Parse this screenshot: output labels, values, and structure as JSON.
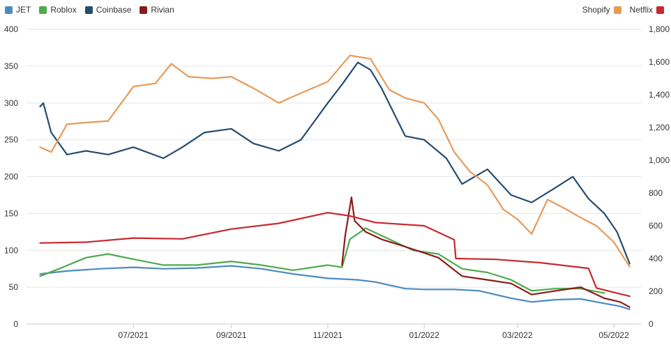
{
  "chart_data": {
    "type": "line",
    "x_axis": {
      "type": "date",
      "range": [
        "2021-05-01",
        "2022-05-12"
      ],
      "tick_labels": [
        "07/2021",
        "09/2021",
        "11/2021",
        "01/2022",
        "03/2022",
        "05/2022"
      ],
      "tick_dates": [
        "2021-07-01",
        "2021-09-01",
        "2021-11-01",
        "2022-01-01",
        "2022-03-01",
        "2022-05-01"
      ]
    },
    "y_left": {
      "ylim": [
        0,
        400
      ],
      "ticks": [
        "0",
        "50",
        "100",
        "150",
        "200",
        "250",
        "300",
        "350",
        "400"
      ]
    },
    "y_right": {
      "ylim": [
        0,
        1800
      ],
      "ticks": [
        "0",
        "200",
        "400",
        "600",
        "800",
        "1,000",
        "1,200",
        "1,400",
        "1,600",
        "1,800"
      ]
    },
    "grid": true,
    "legend_left": [
      "JET",
      "Roblox",
      "Coinbase",
      "Rivian"
    ],
    "legend_right": [
      "Shopify",
      "Netflix"
    ],
    "series": [
      {
        "name": "JET",
        "axis": "left",
        "color": "#4c8bc0",
        "points": [
          [
            "2021-05-03",
            68
          ],
          [
            "2021-05-20",
            72
          ],
          [
            "2021-06-10",
            75
          ],
          [
            "2021-07-01",
            77
          ],
          [
            "2021-07-20",
            75
          ],
          [
            "2021-08-10",
            76
          ],
          [
            "2021-09-01",
            79
          ],
          [
            "2021-09-20",
            75
          ],
          [
            "2021-10-10",
            68
          ],
          [
            "2021-11-01",
            62
          ],
          [
            "2021-11-20",
            60
          ],
          [
            "2021-12-01",
            57
          ],
          [
            "2021-12-20",
            48
          ],
          [
            "2022-01-01",
            47
          ],
          [
            "2022-01-20",
            47
          ],
          [
            "2022-02-05",
            45
          ],
          [
            "2022-02-25",
            35
          ],
          [
            "2022-03-10",
            30
          ],
          [
            "2022-03-25",
            33
          ],
          [
            "2022-04-10",
            34
          ],
          [
            "2022-04-25",
            28
          ],
          [
            "2022-05-05",
            24
          ],
          [
            "2022-05-11",
            20
          ]
        ]
      },
      {
        "name": "Roblox",
        "axis": "left",
        "color": "#4dab4a",
        "points": [
          [
            "2021-05-03",
            65
          ],
          [
            "2021-05-15",
            75
          ],
          [
            "2021-06-01",
            90
          ],
          [
            "2021-06-15",
            95
          ],
          [
            "2021-07-01",
            88
          ],
          [
            "2021-07-20",
            80
          ],
          [
            "2021-08-10",
            80
          ],
          [
            "2021-09-01",
            85
          ],
          [
            "2021-09-20",
            80
          ],
          [
            "2021-10-10",
            73
          ],
          [
            "2021-11-01",
            80
          ],
          [
            "2021-11-10",
            77
          ],
          [
            "2021-11-15",
            115
          ],
          [
            "2021-11-25",
            130
          ],
          [
            "2021-12-10",
            115
          ],
          [
            "2021-12-25",
            100
          ],
          [
            "2022-01-10",
            95
          ],
          [
            "2022-01-25",
            75
          ],
          [
            "2022-02-10",
            70
          ],
          [
            "2022-02-25",
            60
          ],
          [
            "2022-03-10",
            45
          ],
          [
            "2022-03-25",
            48
          ],
          [
            "2022-04-10",
            48
          ],
          [
            "2022-04-25",
            42
          ]
        ]
      },
      {
        "name": "Coinbase",
        "axis": "left",
        "color": "#244c70",
        "points": [
          [
            "2021-05-03",
            295
          ],
          [
            "2021-05-05",
            300
          ],
          [
            "2021-05-10",
            260
          ],
          [
            "2021-05-20",
            230
          ],
          [
            "2021-06-01",
            235
          ],
          [
            "2021-06-15",
            230
          ],
          [
            "2021-07-01",
            240
          ],
          [
            "2021-07-20",
            225
          ],
          [
            "2021-08-01",
            240
          ],
          [
            "2021-08-15",
            260
          ],
          [
            "2021-09-01",
            265
          ],
          [
            "2021-09-15",
            245
          ],
          [
            "2021-10-01",
            235
          ],
          [
            "2021-10-15",
            250
          ],
          [
            "2021-11-01",
            300
          ],
          [
            "2021-11-10",
            325
          ],
          [
            "2021-11-20",
            355
          ],
          [
            "2021-11-28",
            345
          ],
          [
            "2021-12-05",
            320
          ],
          [
            "2021-12-20",
            255
          ],
          [
            "2022-01-01",
            250
          ],
          [
            "2022-01-15",
            225
          ],
          [
            "2022-01-25",
            190
          ],
          [
            "2022-02-10",
            210
          ],
          [
            "2022-02-25",
            175
          ],
          [
            "2022-03-10",
            165
          ],
          [
            "2022-03-25",
            185
          ],
          [
            "2022-04-05",
            200
          ],
          [
            "2022-04-15",
            170
          ],
          [
            "2022-04-25",
            150
          ],
          [
            "2022-05-03",
            125
          ],
          [
            "2022-05-11",
            82
          ]
        ]
      },
      {
        "name": "Rivian",
        "axis": "left",
        "color": "#8b1a1a",
        "points": [
          [
            "2021-11-10",
            80
          ],
          [
            "2021-11-12",
            120
          ],
          [
            "2021-11-16",
            172
          ],
          [
            "2021-11-18",
            140
          ],
          [
            "2021-11-25",
            125
          ],
          [
            "2021-12-05",
            115
          ],
          [
            "2021-12-20",
            105
          ],
          [
            "2022-01-10",
            90
          ],
          [
            "2022-01-25",
            65
          ],
          [
            "2022-02-10",
            60
          ],
          [
            "2022-02-25",
            55
          ],
          [
            "2022-03-10",
            40
          ],
          [
            "2022-03-25",
            45
          ],
          [
            "2022-04-10",
            50
          ],
          [
            "2022-04-25",
            35
          ],
          [
            "2022-05-05",
            30
          ],
          [
            "2022-05-11",
            23
          ]
        ]
      },
      {
        "name": "Shopify",
        "axis": "right",
        "color": "#e89a55",
        "points": [
          [
            "2021-05-03",
            1080
          ],
          [
            "2021-05-10",
            1050
          ],
          [
            "2021-05-20",
            1220
          ],
          [
            "2021-06-01",
            1230
          ],
          [
            "2021-06-15",
            1240
          ],
          [
            "2021-07-01",
            1450
          ],
          [
            "2021-07-15",
            1470
          ],
          [
            "2021-07-25",
            1590
          ],
          [
            "2021-08-05",
            1510
          ],
          [
            "2021-08-20",
            1500
          ],
          [
            "2021-09-01",
            1510
          ],
          [
            "2021-09-15",
            1440
          ],
          [
            "2021-10-01",
            1350
          ],
          [
            "2021-10-15",
            1410
          ],
          [
            "2021-11-01",
            1480
          ],
          [
            "2021-11-15",
            1640
          ],
          [
            "2021-11-28",
            1620
          ],
          [
            "2021-12-10",
            1430
          ],
          [
            "2021-12-20",
            1380
          ],
          [
            "2022-01-01",
            1350
          ],
          [
            "2022-01-10",
            1250
          ],
          [
            "2022-01-20",
            1050
          ],
          [
            "2022-01-30",
            930
          ],
          [
            "2022-02-10",
            850
          ],
          [
            "2022-02-20",
            700
          ],
          [
            "2022-03-01",
            640
          ],
          [
            "2022-03-10",
            550
          ],
          [
            "2022-03-20",
            760
          ],
          [
            "2022-04-01",
            700
          ],
          [
            "2022-04-10",
            650
          ],
          [
            "2022-04-20",
            600
          ],
          [
            "2022-05-01",
            500
          ],
          [
            "2022-05-11",
            350
          ]
        ]
      },
      {
        "name": "Netflix",
        "axis": "right",
        "color": "#c8282d",
        "points": [
          [
            "2021-05-03",
            495
          ],
          [
            "2021-06-01",
            500
          ],
          [
            "2021-07-01",
            525
          ],
          [
            "2021-08-01",
            520
          ],
          [
            "2021-09-01",
            580
          ],
          [
            "2021-10-01",
            615
          ],
          [
            "2021-11-01",
            680
          ],
          [
            "2021-11-15",
            660
          ],
          [
            "2021-12-01",
            620
          ],
          [
            "2022-01-01",
            600
          ],
          [
            "2022-01-20",
            515
          ],
          [
            "2022-01-21",
            400
          ],
          [
            "2022-02-15",
            395
          ],
          [
            "2022-03-15",
            375
          ],
          [
            "2022-04-15",
            340
          ],
          [
            "2022-04-20",
            220
          ],
          [
            "2022-05-11",
            170
          ]
        ]
      }
    ]
  }
}
